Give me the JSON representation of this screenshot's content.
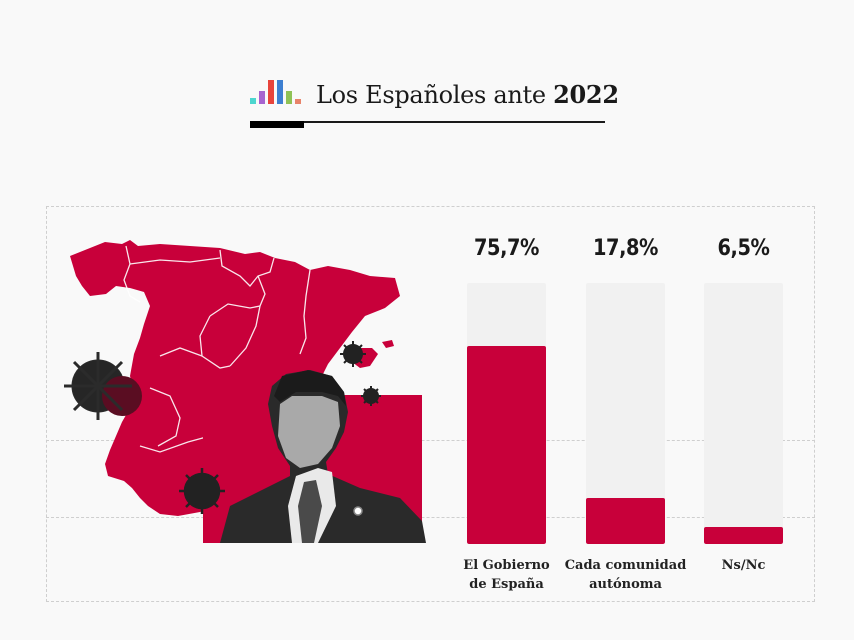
{
  "header": {
    "title_regular": "Los Españoles ante ",
    "title_bold": "2022",
    "logo_bar_colors": [
      "#4dd6cf",
      "#a764d0",
      "#e8443c",
      "#3d7fd1",
      "#8fc256",
      "#e8836a"
    ],
    "logo_bar_levels": [
      0.25,
      0.55,
      1.0,
      1.0,
      0.55,
      0.2
    ]
  },
  "illustration": {
    "description": "Red map of Spain with regional borders, coronavirus particles and black-and-white portrait of a politician",
    "map_color": "#c8003a",
    "virus_icons": 4
  },
  "colors": {
    "accent": "#c8003a",
    "track": "#f1f1f1",
    "frame_dash": "#cfcfcf"
  },
  "chart_data": {
    "type": "bar",
    "title": "Los Españoles ante 2022",
    "categories": [
      "El Gobierno de España",
      "Cada comunidad autónoma",
      "Ns/Nc"
    ],
    "category_lines": [
      [
        "El Gobierno",
        "de España"
      ],
      [
        "Cada comunidad",
        "autónoma"
      ],
      [
        "Ns/Nc"
      ]
    ],
    "values": [
      75.7,
      17.8,
      6.5
    ],
    "value_labels": [
      "75,7%",
      "17,8%",
      "6,5%"
    ],
    "unit": "%",
    "ylim": [
      0,
      100
    ],
    "xlabel": "",
    "ylabel": "",
    "grid": false,
    "legend": "none"
  }
}
